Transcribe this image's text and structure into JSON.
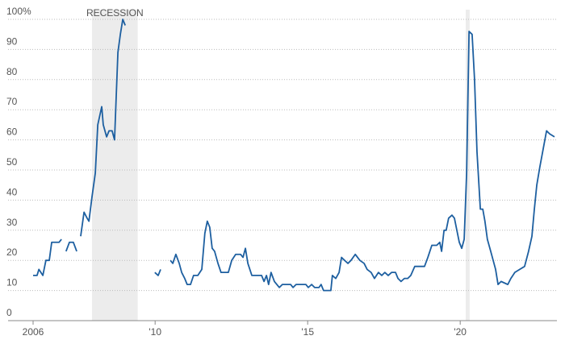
{
  "chart_data": {
    "type": "line",
    "x": [
      2006.0,
      2006.13,
      2006.19,
      2006.32,
      2006.42,
      2006.53,
      2006.61,
      2006.79,
      2006.85,
      2006.93,
      2007.0,
      2007.08,
      2007.19,
      2007.32,
      2007.43,
      2007.5,
      2007.56,
      2007.67,
      2007.77,
      2007.83,
      2007.93,
      2008.04,
      2008.12,
      2008.25,
      2008.3,
      2008.41,
      2008.49,
      2008.59,
      2008.67,
      2008.78,
      2008.86,
      2008.94,
      2009.02,
      2009.5,
      2009.99,
      2010.1,
      2010.18,
      2010.3,
      2010.5,
      2010.58,
      2010.68,
      2010.79,
      2010.87,
      2010.97,
      2011.05,
      2011.16,
      2011.26,
      2011.4,
      2011.53,
      2011.63,
      2011.71,
      2011.79,
      2011.87,
      2011.95,
      2012.06,
      2012.16,
      2012.32,
      2012.4,
      2012.51,
      2012.64,
      2012.8,
      2012.88,
      2012.96,
      2013.04,
      2013.17,
      2013.33,
      2013.49,
      2013.57,
      2013.65,
      2013.72,
      2013.8,
      2013.91,
      2014.07,
      2014.17,
      2014.33,
      2014.44,
      2014.52,
      2014.62,
      2014.81,
      2014.94,
      2015.02,
      2015.13,
      2015.23,
      2015.37,
      2015.44,
      2015.52,
      2015.66,
      2015.76,
      2015.81,
      2015.92,
      2016.03,
      2016.11,
      2016.21,
      2016.32,
      2016.42,
      2016.56,
      2016.71,
      2016.85,
      2016.95,
      2017.08,
      2017.19,
      2017.32,
      2017.43,
      2017.53,
      2017.64,
      2017.75,
      2017.88,
      2017.96,
      2018.06,
      2018.17,
      2018.28,
      2018.38,
      2018.51,
      2018.67,
      2018.83,
      2018.94,
      2019.07,
      2019.23,
      2019.33,
      2019.39,
      2019.47,
      2019.54,
      2019.62,
      2019.73,
      2019.81,
      2019.89,
      2019.97,
      2020.05,
      2020.13,
      2020.21,
      2020.29,
      2020.39,
      2020.47,
      2020.55,
      2020.66,
      2020.74,
      2020.81,
      2020.89,
      2021.0,
      2021.08,
      2021.16,
      2021.24,
      2021.34,
      2021.45,
      2021.56,
      2021.66,
      2021.79,
      2021.95,
      2022.11,
      2022.24,
      2022.35,
      2022.43,
      2022.51,
      2022.61,
      2022.72,
      2022.83,
      2022.93,
      2023.09
    ],
    "series": [
      {
        "color": "#1d5fa0",
        "values": [
          15,
          15,
          17,
          15,
          20,
          20,
          26,
          26,
          26,
          27,
          null,
          23,
          26,
          26,
          23,
          null,
          28,
          36,
          34,
          33,
          41,
          49,
          65,
          71,
          65,
          61,
          63,
          63,
          60,
          89,
          95,
          100,
          98,
          null,
          16,
          15,
          17,
          null,
          20,
          19,
          22,
          19,
          16,
          14,
          12,
          12,
          15,
          15,
          17,
          29,
          33,
          31,
          24,
          23,
          19,
          16,
          16,
          16,
          20,
          22,
          22,
          21,
          24,
          19,
          15,
          15,
          15,
          13,
          15,
          12,
          16,
          13,
          11,
          12,
          12,
          12,
          11,
          12,
          12,
          12,
          11,
          12,
          11,
          11,
          12,
          10,
          10,
          10,
          15,
          14,
          16,
          21,
          20,
          19,
          20,
          22,
          20,
          19,
          17,
          16,
          14,
          16,
          15,
          16,
          15,
          16,
          16,
          14,
          13,
          14,
          14,
          15,
          18,
          18,
          18,
          21,
          25,
          25,
          26,
          23,
          30,
          30,
          34,
          35,
          34,
          30,
          26,
          24,
          27,
          49,
          96,
          95,
          80,
          56,
          37,
          37,
          33,
          27,
          23,
          20,
          17,
          12,
          13,
          12.5,
          12,
          14,
          16,
          17,
          18,
          23,
          28,
          37,
          45,
          51,
          57,
          63,
          62,
          61
        ]
      }
    ],
    "xlim": [
      2005.18,
      2023.17
    ],
    "xticks": [
      {
        "value": 2006,
        "label": "2006"
      },
      {
        "value": 2010,
        "label": "'10"
      },
      {
        "value": 2015,
        "label": "'15"
      },
      {
        "value": 2020,
        "label": "'20"
      }
    ],
    "ylim": [
      0,
      100
    ],
    "yticks": [
      0,
      10,
      20,
      30,
      40,
      50,
      60,
      70,
      80,
      90,
      {
        "value": 100,
        "label": "100%"
      }
    ],
    "grid": true,
    "shaded": [
      {
        "start": 2007.93,
        "end": 2009.43,
        "label": "RECESSION"
      },
      {
        "start": 2020.18,
        "end": 2020.31
      }
    ]
  }
}
